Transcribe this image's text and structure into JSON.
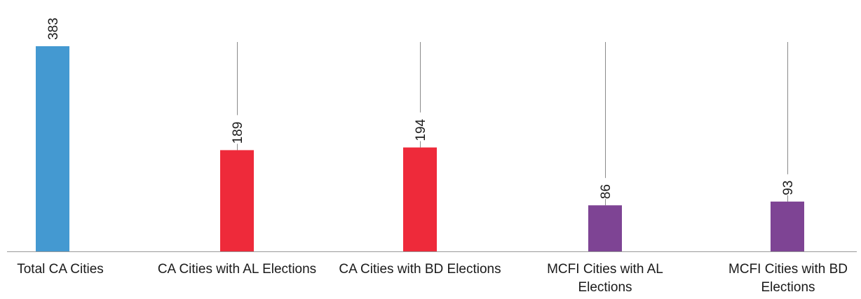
{
  "chart_data": {
    "type": "bar",
    "title": "",
    "xlabel": "",
    "ylabel": "",
    "categories": [
      "Total CA Cities",
      "CA Cities with AL Elections",
      "CA Cities with BD Elections",
      "MCFI Cities with AL Elections",
      "MCFI Cities with BD Elections"
    ],
    "values": [
      383,
      189,
      194,
      86,
      93
    ],
    "data_labels": [
      "383",
      "189",
      "194",
      "86",
      "93"
    ],
    "colors": [
      "#4499d1",
      "#ee2a3a",
      "#ee2a3a",
      "#7e4494",
      "#7e4494"
    ],
    "ylim": [
      0,
      383
    ],
    "grid": false,
    "legend": "none"
  }
}
